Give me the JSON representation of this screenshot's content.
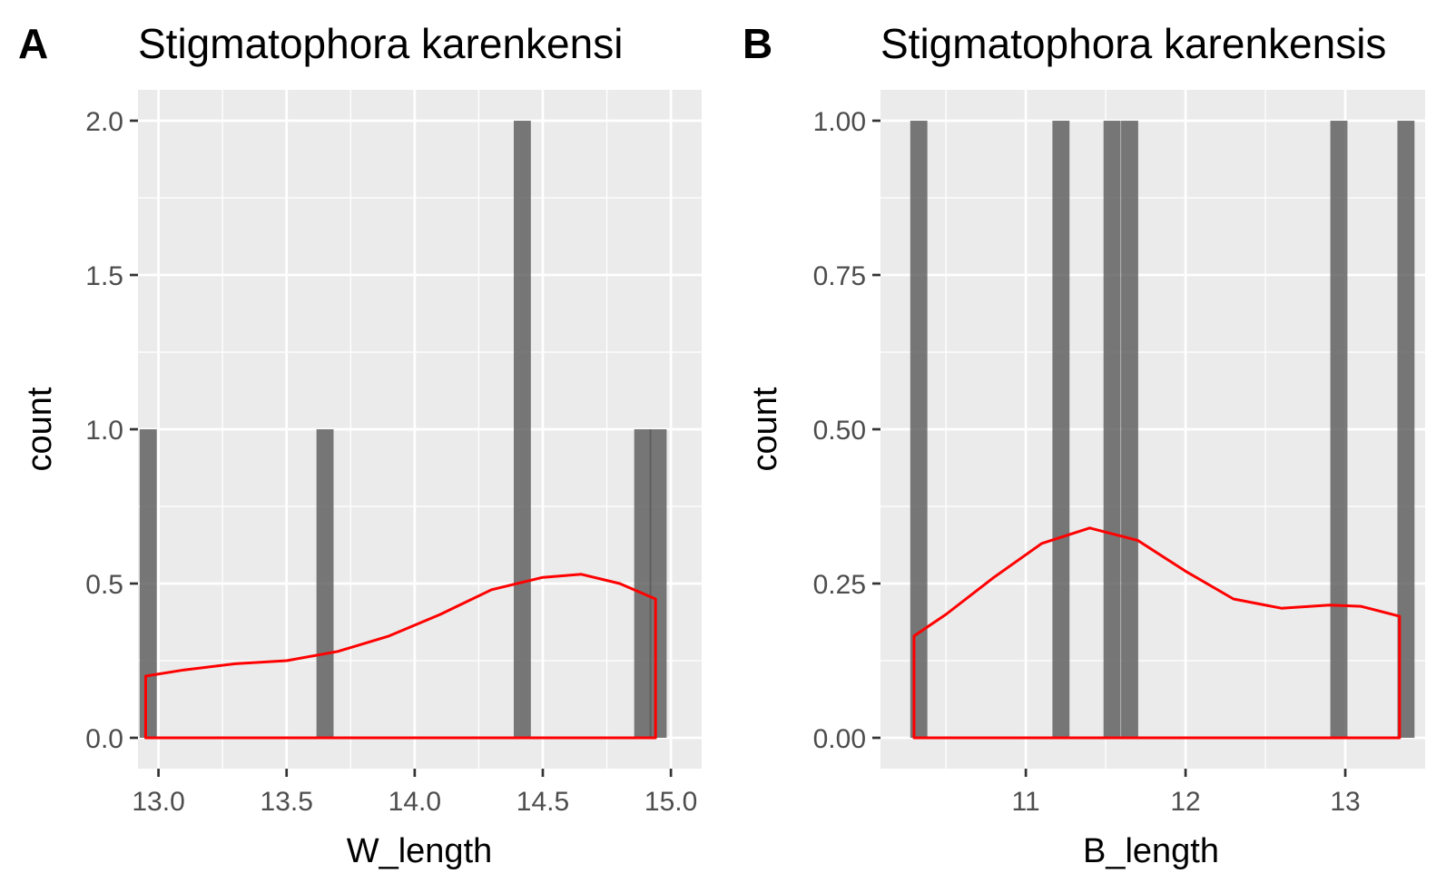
{
  "chart_data": [
    {
      "type": "bar",
      "panel_tag": "A",
      "title": "Stigmatophora karenkensi",
      "xlabel": "W_length",
      "ylabel": "count",
      "xlim": [
        12.92,
        15.12
      ],
      "ylim": [
        -0.1,
        2.1
      ],
      "x_ticks": [
        "13.0",
        "13.5",
        "14.0",
        "14.5",
        "15.0"
      ],
      "x_tick_values": [
        13.0,
        13.5,
        14.0,
        14.5,
        15.0
      ],
      "y_ticks": [
        "0.0",
        "0.5",
        "1.0",
        "1.5",
        "2.0"
      ],
      "y_tick_values": [
        0.0,
        0.5,
        1.0,
        1.5,
        2.0
      ],
      "bar_width": 0.0667,
      "bars": [
        {
          "x": 12.96,
          "count": 1
        },
        {
          "x": 13.65,
          "count": 1
        },
        {
          "x": 14.42,
          "count": 2
        },
        {
          "x": 14.89,
          "count": 1
        },
        {
          "x": 14.95,
          "count": 1
        }
      ],
      "density_color": "#ff0000",
      "bar_color": "#595959",
      "density": {
        "x": [
          12.95,
          13.1,
          13.3,
          13.5,
          13.7,
          13.9,
          14.1,
          14.3,
          14.5,
          14.65,
          14.8,
          14.94
        ],
        "y": [
          0.2,
          0.22,
          0.24,
          0.25,
          0.28,
          0.33,
          0.4,
          0.48,
          0.52,
          0.53,
          0.5,
          0.45
        ]
      }
    },
    {
      "type": "bar",
      "panel_tag": "B",
      "title": "Stigmatophora karenkensis",
      "xlabel": "B_length",
      "ylabel": "count",
      "xlim": [
        10.09,
        13.5
      ],
      "ylim": [
        -0.05,
        1.05
      ],
      "x_ticks": [
        "11",
        "12",
        "13"
      ],
      "x_tick_values": [
        11,
        12,
        13
      ],
      "y_ticks": [
        "0.00",
        "0.25",
        "0.50",
        "0.75",
        "1.00"
      ],
      "y_tick_values": [
        0.0,
        0.25,
        0.5,
        0.75,
        1.0
      ],
      "bar_width": 0.107,
      "bars": [
        {
          "x": 10.33,
          "count": 1
        },
        {
          "x": 11.22,
          "count": 1
        },
        {
          "x": 11.54,
          "count": 1
        },
        {
          "x": 11.65,
          "count": 1
        },
        {
          "x": 12.96,
          "count": 1
        },
        {
          "x": 13.38,
          "count": 1
        }
      ],
      "density_color": "#ff0000",
      "bar_color": "#595959",
      "density": {
        "x": [
          10.3,
          10.5,
          10.8,
          11.1,
          11.4,
          11.7,
          12.0,
          12.3,
          12.6,
          12.9,
          13.1,
          13.34
        ],
        "y": [
          0.165,
          0.2,
          0.26,
          0.315,
          0.34,
          0.32,
          0.27,
          0.225,
          0.21,
          0.215,
          0.213,
          0.197
        ]
      }
    }
  ]
}
